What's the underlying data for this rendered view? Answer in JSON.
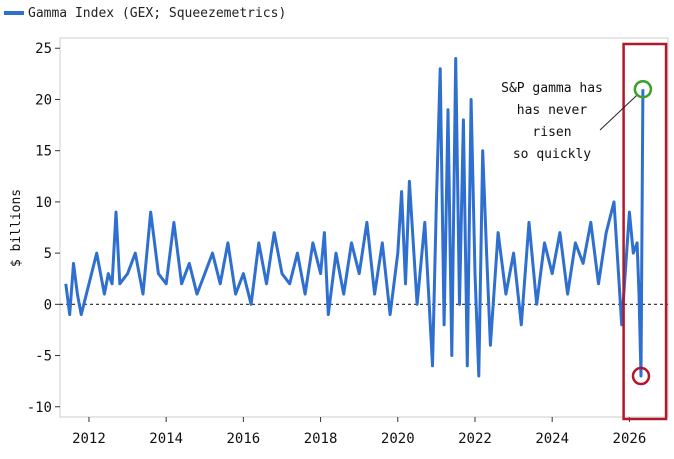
{
  "chart_data": {
    "type": "line",
    "title": "",
    "xlabel": "",
    "ylabel": "$ billions",
    "xlim": [
      2011.25,
      2027.0
    ],
    "ylim": [
      -11,
      26
    ],
    "x_ticks": [
      2012,
      2014,
      2016,
      2018,
      2020,
      2022,
      2024,
      2026
    ],
    "x_tick_labels": [
      "2012",
      "2014",
      "2016",
      "2018",
      "2020",
      "2022",
      "2024",
      "2026"
    ],
    "y_ticks": [
      -10,
      -5,
      0,
      5,
      10,
      15,
      20,
      25
    ],
    "y_tick_labels": [
      "-10",
      "-5",
      "0",
      "5",
      "10",
      "15",
      "20",
      "25"
    ],
    "grid": false,
    "legend_position": "top-left",
    "zero_line": "dashed",
    "series": [
      {
        "name": "Gamma Index (GEX; Squeezemetrics)",
        "color": "#2f6fcf",
        "x": [
          2011.4,
          2011.5,
          2011.6,
          2011.7,
          2011.8,
          2012.0,
          2012.2,
          2012.4,
          2012.5,
          2012.6,
          2012.7,
          2012.8,
          2013.0,
          2013.2,
          2013.4,
          2013.6,
          2013.8,
          2014.0,
          2014.2,
          2014.4,
          2014.6,
          2014.8,
          2015.0,
          2015.2,
          2015.4,
          2015.6,
          2015.8,
          2016.0,
          2016.2,
          2016.4,
          2016.6,
          2016.8,
          2017.0,
          2017.2,
          2017.4,
          2017.6,
          2017.8,
          2018.0,
          2018.1,
          2018.2,
          2018.4,
          2018.6,
          2018.8,
          2019.0,
          2019.2,
          2019.4,
          2019.6,
          2019.8,
          2020.0,
          2020.1,
          2020.2,
          2020.3,
          2020.5,
          2020.7,
          2020.9,
          2021.0,
          2021.1,
          2021.2,
          2021.3,
          2021.4,
          2021.5,
          2021.6,
          2021.7,
          2021.8,
          2021.9,
          2022.0,
          2022.1,
          2022.2,
          2022.3,
          2022.4,
          2022.6,
          2022.8,
          2023.0,
          2023.2,
          2023.4,
          2023.6,
          2023.8,
          2024.0,
          2024.2,
          2024.4,
          2024.6,
          2024.8,
          2025.0,
          2025.2,
          2025.4,
          2025.6,
          2025.8,
          2026.0,
          2026.1,
          2026.2,
          2026.25,
          2026.3,
          2026.35
        ],
        "values": [
          2,
          -1,
          4,
          1,
          -1,
          2,
          5,
          1,
          3,
          2,
          9,
          2,
          3,
          5,
          1,
          9,
          3,
          2,
          8,
          2,
          4,
          1,
          3,
          5,
          2,
          6,
          1,
          3,
          0,
          6,
          2,
          7,
          3,
          2,
          5,
          1,
          6,
          3,
          7,
          -1,
          5,
          1,
          6,
          3,
          8,
          1,
          6,
          -1,
          5,
          11,
          2,
          12,
          0,
          8,
          -6,
          10,
          23,
          -2,
          19,
          -5,
          24,
          0,
          18,
          -6,
          20,
          3,
          -7,
          15,
          5,
          -4,
          7,
          1,
          5,
          -2,
          8,
          0,
          6,
          3,
          7,
          1,
          6,
          4,
          8,
          2,
          7,
          10,
          -2,
          9,
          5,
          6,
          1,
          -7,
          21
        ]
      }
    ],
    "annotations": [
      {
        "text_lines": [
          "S&P gamma has",
          "has never",
          "risen",
          "so quickly"
        ],
        "color": "#111111"
      }
    ],
    "markers": [
      {
        "name": "recent-high-circle",
        "x": 2026.35,
        "y": 21,
        "color": "#3aa02a"
      },
      {
        "name": "recent-low-circle",
        "x": 2026.3,
        "y": -7,
        "color": "#b0182b"
      }
    ],
    "highlight_box": {
      "x_from": 2025.85,
      "x_to": 2026.95,
      "color": "#b0182b"
    }
  }
}
